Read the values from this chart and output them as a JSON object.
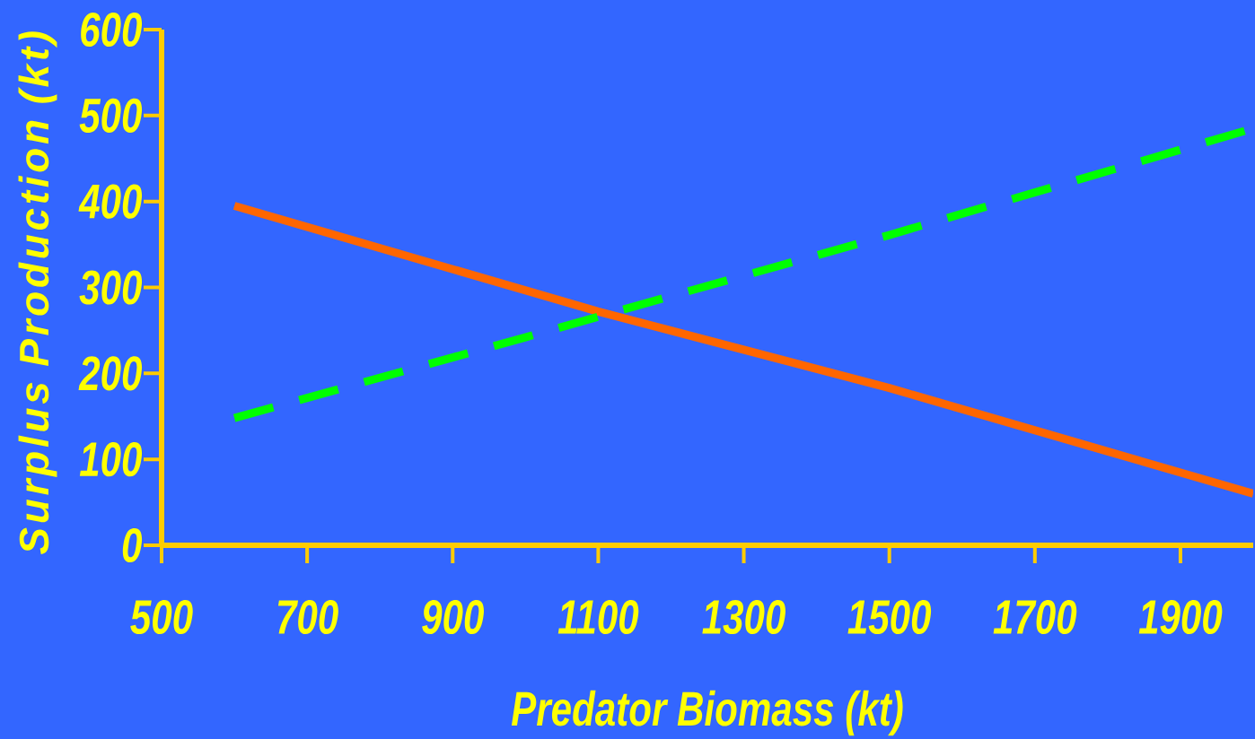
{
  "chart_data": {
    "type": "line",
    "xlabel": "Predator Biomass (kt)",
    "ylabel": "Surplus Production (kt)",
    "xlim": [
      500,
      2000
    ],
    "ylim": [
      0,
      600
    ],
    "xticks": [
      500,
      700,
      900,
      1100,
      1300,
      1500,
      1700,
      1900
    ],
    "yticks": [
      0,
      100,
      200,
      300,
      400,
      500,
      600
    ],
    "marker": "none",
    "series": [
      {
        "color": "#ff6600",
        "line_style": "solid",
        "x": [
          600,
          1100,
          1500,
          2000
        ],
        "values": [
          395,
          272,
          183,
          60
        ]
      },
      {
        "color": "#00ff00",
        "line_style": "dashed",
        "x": [
          600,
          1000,
          1200,
          1500,
          2000
        ],
        "values": [
          148,
          242,
          290,
          361,
          485
        ]
      }
    ]
  }
}
